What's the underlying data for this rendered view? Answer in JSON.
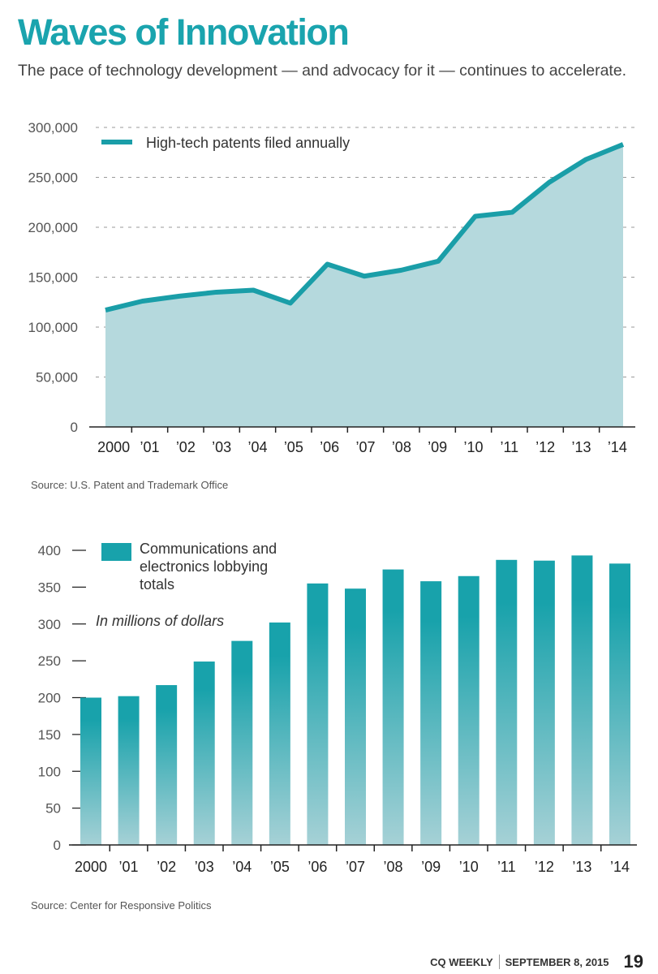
{
  "header": {
    "title": "Waves of Innovation",
    "subtitle": "The pace of technology development — and advocacy for it — continues to accelerate."
  },
  "chart_data": [
    {
      "type": "area",
      "title": "",
      "legend": "High-tech patents filed annually",
      "legend_position": "top-left",
      "categories": [
        "2000",
        "’01",
        "’02",
        "’03",
        "’04",
        "’05",
        "’06",
        "’07",
        "’08",
        "’09",
        "’10",
        "’11",
        "’12",
        "’13",
        "’14"
      ],
      "values": [
        117000,
        126000,
        131000,
        135000,
        137000,
        124000,
        163000,
        151000,
        157000,
        166000,
        211000,
        215000,
        245000,
        268000,
        283000
      ],
      "yticks": [
        "0",
        "50,000",
        "100,000",
        "150,000",
        "200,000",
        "250,000",
        "300,000"
      ],
      "ylim": [
        0,
        300000
      ],
      "grid": true,
      "source": "Source: U.S. Patent and Trademark Office",
      "colors": {
        "line": "#1a9ea8",
        "fill": "#b5d9dd",
        "grid": "#9a9a9a"
      }
    },
    {
      "type": "bar",
      "title": "",
      "legend": [
        "Communications and",
        "electronics lobbying",
        "totals"
      ],
      "legend_position": "top-left",
      "note": "In millions of dollars",
      "categories": [
        "2000",
        "’01",
        "’02",
        "’03",
        "’04",
        "’05",
        "’06",
        "’07",
        "’08",
        "’09",
        "’10",
        "’11",
        "’12",
        "’13",
        "’14"
      ],
      "values": [
        200,
        202,
        217,
        249,
        277,
        302,
        355,
        348,
        374,
        358,
        365,
        387,
        386,
        393,
        382
      ],
      "yticks": [
        "0",
        "50",
        "100",
        "150",
        "200",
        "250",
        "300",
        "350",
        "400"
      ],
      "ylim": [
        0,
        400
      ],
      "grid": false,
      "source": "Source: Center for Responsive Politics",
      "colors": {
        "bar_top": "#18a2ab",
        "bar_bottom": "#a6d1d6"
      }
    }
  ],
  "footer": {
    "publication": "CQ WEEKLY",
    "date": "SEPTEMBER 8, 2015",
    "page_number": "19"
  }
}
